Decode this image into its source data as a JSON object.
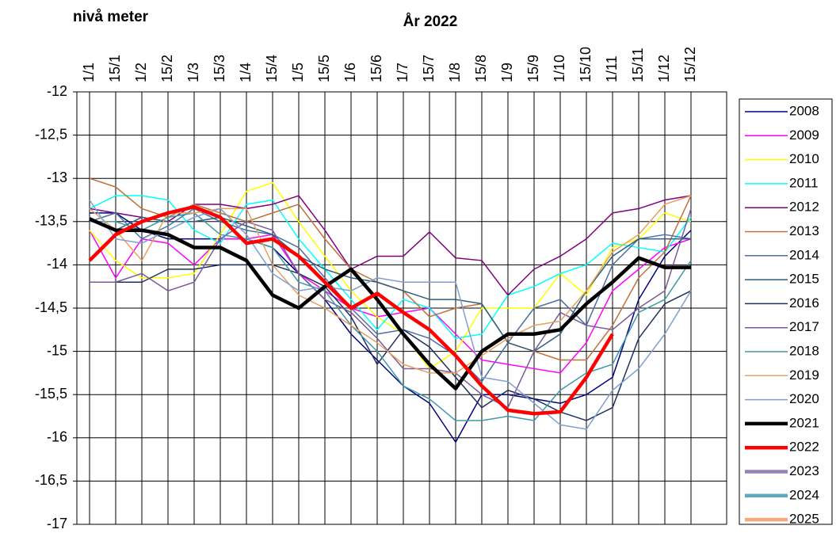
{
  "chart_data": {
    "type": "line",
    "title": "År 2022",
    "y_label": "nivå meter",
    "categories": [
      "1/1",
      "15/1",
      "1/2",
      "15/2",
      "1/3",
      "15/3",
      "1/4",
      "15/4",
      "1/5",
      "15/5",
      "1/6",
      "15/6",
      "1/7",
      "15/7",
      "1/8",
      "15/8",
      "1/9",
      "15/9",
      "1/10",
      "15/10",
      "1/11",
      "15/11",
      "1/12",
      "15/12"
    ],
    "ylim": [
      -17,
      -12
    ],
    "yticks": [
      -12,
      {
        "value": -12.5,
        "label": "-12,5"
      },
      -13,
      {
        "value": -13.5,
        "label": "-13,5"
      },
      -14,
      {
        "value": -14.5,
        "label": "-14,5"
      },
      -15,
      {
        "value": -15.5,
        "label": "-15,5"
      },
      -16,
      {
        "value": -16.5,
        "label": "-16,5"
      },
      -17
    ],
    "grid": true,
    "legend": "right",
    "series": [
      {
        "name": "2008",
        "color": "#000080",
        "width": 1.5,
        "values": [
          -13.4,
          -13.4,
          -13.6,
          -13.7,
          -13.7,
          -13.7,
          -13.7,
          -13.8,
          -14.1,
          -14.4,
          -14.8,
          -15.1,
          -15.4,
          -15.6,
          -16.05,
          -15.5,
          -15.5,
          -15.55,
          -15.6,
          -15.5,
          -15.3,
          -14.4,
          -13.9,
          -13.6
        ]
      },
      {
        "name": "2009",
        "color": "#ff00ff",
        "width": 1.5,
        "values": [
          -13.6,
          -14.15,
          -13.7,
          -13.75,
          -14.0,
          -13.7,
          -13.7,
          -13.65,
          -14.1,
          -14.3,
          -14.5,
          -14.6,
          -14.55,
          -14.5,
          -14.8,
          -15.1,
          -15.15,
          -15.2,
          -15.25,
          -14.9,
          -14.3,
          -14.05,
          -13.8,
          -13.7
        ]
      },
      {
        "name": "2010",
        "color": "#ffff00",
        "width": 1.5,
        "values": [
          -13.6,
          -13.95,
          -14.15,
          -14.15,
          -14.1,
          -13.65,
          -13.15,
          -13.05,
          -13.5,
          -13.9,
          -14.3,
          -14.6,
          -14.8,
          -15.2,
          -15.0,
          -14.5,
          -14.5,
          -14.5,
          -14.1,
          -14.35,
          -13.8,
          -13.7,
          -13.4,
          -13.5
        ]
      },
      {
        "name": "2011",
        "color": "#00ffff",
        "width": 1.5,
        "values": [
          -13.35,
          -13.2,
          -13.2,
          -13.25,
          -13.6,
          -13.75,
          -13.3,
          -13.25,
          -13.7,
          -14.05,
          -14.4,
          -14.75,
          -14.4,
          -14.5,
          -14.85,
          -14.8,
          -14.35,
          -14.25,
          -14.1,
          -14.0,
          -13.75,
          -13.8,
          -13.85,
          -13.45
        ]
      },
      {
        "name": "2012",
        "color": "#800080",
        "width": 1.5,
        "values": [
          -13.35,
          -13.4,
          -13.45,
          -13.5,
          -13.3,
          -13.3,
          -13.35,
          -13.3,
          -13.2,
          -13.6,
          -14.05,
          -13.9,
          -13.9,
          -13.62,
          -13.92,
          -13.95,
          -14.35,
          -14.05,
          -13.9,
          -13.7,
          -13.4,
          -13.35,
          -13.25,
          -13.2
        ]
      },
      {
        "name": "2013",
        "color": "#c0703a",
        "width": 1.5,
        "values": [
          -13.0,
          -13.1,
          -13.35,
          -13.45,
          -13.3,
          -13.4,
          -13.5,
          -13.4,
          -13.3,
          -13.7,
          -14.05,
          -14.2,
          -14.3,
          -14.6,
          -14.5,
          -14.45,
          -14.9,
          -15.0,
          -15.1,
          -15.1,
          -14.7,
          -14.15,
          -13.85,
          -13.2
        ]
      },
      {
        "name": "2014",
        "color": "#4a6fa5",
        "width": 1.5,
        "values": [
          -13.5,
          -13.4,
          -13.7,
          -13.55,
          -13.35,
          -13.5,
          -13.6,
          -13.65,
          -13.8,
          -14.15,
          -14.5,
          -14.8,
          -14.75,
          -14.85,
          -15.05,
          -15.35,
          -14.9,
          -14.5,
          -14.4,
          -14.7,
          -14.0,
          -13.7,
          -13.65,
          -13.7
        ]
      },
      {
        "name": "2015",
        "color": "#2f5f7f",
        "width": 1.5,
        "values": [
          -13.45,
          -13.6,
          -13.45,
          -13.5,
          -13.5,
          -13.45,
          -13.55,
          -13.65,
          -13.9,
          -14.05,
          -14.15,
          -14.2,
          -14.3,
          -14.4,
          -14.4,
          -14.45,
          -14.9,
          -15.0,
          -14.8,
          -14.3,
          -13.9,
          -13.7,
          -13.7,
          -13.7
        ]
      },
      {
        "name": "2016",
        "color": "#1f2f5f",
        "width": 1.5,
        "values": [
          -14.2,
          -14.2,
          -14.2,
          -14.05,
          -14.05,
          -14.0,
          -14.0,
          -14.0,
          -14.1,
          -14.25,
          -14.6,
          -15.15,
          -14.75,
          -14.95,
          -15.3,
          -15.65,
          -15.45,
          -15.55,
          -15.7,
          -15.8,
          -15.65,
          -14.85,
          -14.45,
          -14.3
        ]
      },
      {
        "name": "2017",
        "color": "#7a5a9a",
        "width": 1.5,
        "values": [
          -14.2,
          -14.2,
          -14.1,
          -14.3,
          -14.2,
          -13.7,
          -13.5,
          -13.6,
          -14.1,
          -14.4,
          -14.55,
          -14.85,
          -15.2,
          -15.2,
          -15.25,
          -15.5,
          -15.65,
          -15.0,
          -14.55,
          -14.7,
          -14.75,
          -14.5,
          -14.3,
          -13.35
        ]
      },
      {
        "name": "2018",
        "color": "#3e9aa8",
        "width": 1.5,
        "values": [
          -13.5,
          -13.5,
          -13.6,
          -13.45,
          -13.4,
          -13.65,
          -13.7,
          -13.8,
          -14.2,
          -14.3,
          -14.7,
          -15.0,
          -15.4,
          -15.55,
          -15.8,
          -15.8,
          -15.75,
          -15.8,
          -15.45,
          -15.25,
          -15.15,
          -14.55,
          -14.4,
          -13.95
        ]
      },
      {
        "name": "2019",
        "color": "#e8a060",
        "width": 1.5,
        "values": [
          -13.35,
          -13.6,
          -13.95,
          -13.4,
          -13.4,
          -13.35,
          -13.35,
          -14.0,
          -14.35,
          -14.5,
          -14.7,
          -14.9,
          -15.15,
          -15.25,
          -15.25,
          -15.05,
          -14.85,
          -14.7,
          -14.65,
          -14.3,
          -13.85,
          -13.65,
          -13.3,
          -13.2
        ]
      },
      {
        "name": "2020",
        "color": "#7f9fcf",
        "width": 1.5,
        "values": [
          -13.25,
          -13.7,
          -13.75,
          -13.6,
          -13.45,
          -13.35,
          -13.65,
          -14.1,
          -14.3,
          -14.25,
          -14.3,
          -14.15,
          -14.2,
          -14.2,
          -14.2,
          -15.3,
          -15.35,
          -15.6,
          -15.85,
          -15.9,
          -15.45,
          -15.2,
          -14.8,
          -14.3
        ]
      },
      {
        "name": "2021",
        "color": "#000000",
        "width": 4.5,
        "values": [
          -13.47,
          -13.6,
          -13.6,
          -13.65,
          -13.8,
          -13.8,
          -13.95,
          -14.35,
          -14.5,
          -14.25,
          -14.05,
          -14.4,
          -14.8,
          -15.15,
          -15.43,
          -15.0,
          -14.8,
          -14.8,
          -14.75,
          -14.45,
          -14.2,
          -13.92,
          -14.03,
          -14.03
        ]
      },
      {
        "name": "2022",
        "color": "#ff0000",
        "width": 4.5,
        "values": [
          -13.95,
          -13.65,
          -13.5,
          -13.4,
          -13.33,
          -13.45,
          -13.75,
          -13.7,
          -13.9,
          -14.2,
          -14.5,
          -14.33,
          -14.55,
          -14.75,
          -15.05,
          -15.4,
          -15.68,
          -15.72,
          -15.7,
          -15.3,
          -14.8,
          null,
          null,
          null
        ]
      },
      {
        "name": "2023",
        "color": "#9a80b8",
        "width": 4.5,
        "values": [
          null,
          null,
          null,
          null,
          null,
          null,
          null,
          null,
          null,
          null,
          null,
          null,
          null,
          null,
          null,
          null,
          null,
          null,
          null,
          null,
          null,
          null,
          null,
          null
        ]
      },
      {
        "name": "2024",
        "color": "#5fa8c0",
        "width": 4.5,
        "values": [
          null,
          null,
          null,
          null,
          null,
          null,
          null,
          null,
          null,
          null,
          null,
          null,
          null,
          null,
          null,
          null,
          null,
          null,
          null,
          null,
          null,
          null,
          null,
          null
        ]
      },
      {
        "name": "2025",
        "color": "#f8a878",
        "width": 4.5,
        "values": [
          null,
          null,
          null,
          null,
          null,
          null,
          null,
          null,
          null,
          null,
          null,
          null,
          null,
          null,
          null,
          null,
          null,
          null,
          null,
          null,
          null,
          null,
          null,
          null
        ]
      }
    ]
  }
}
